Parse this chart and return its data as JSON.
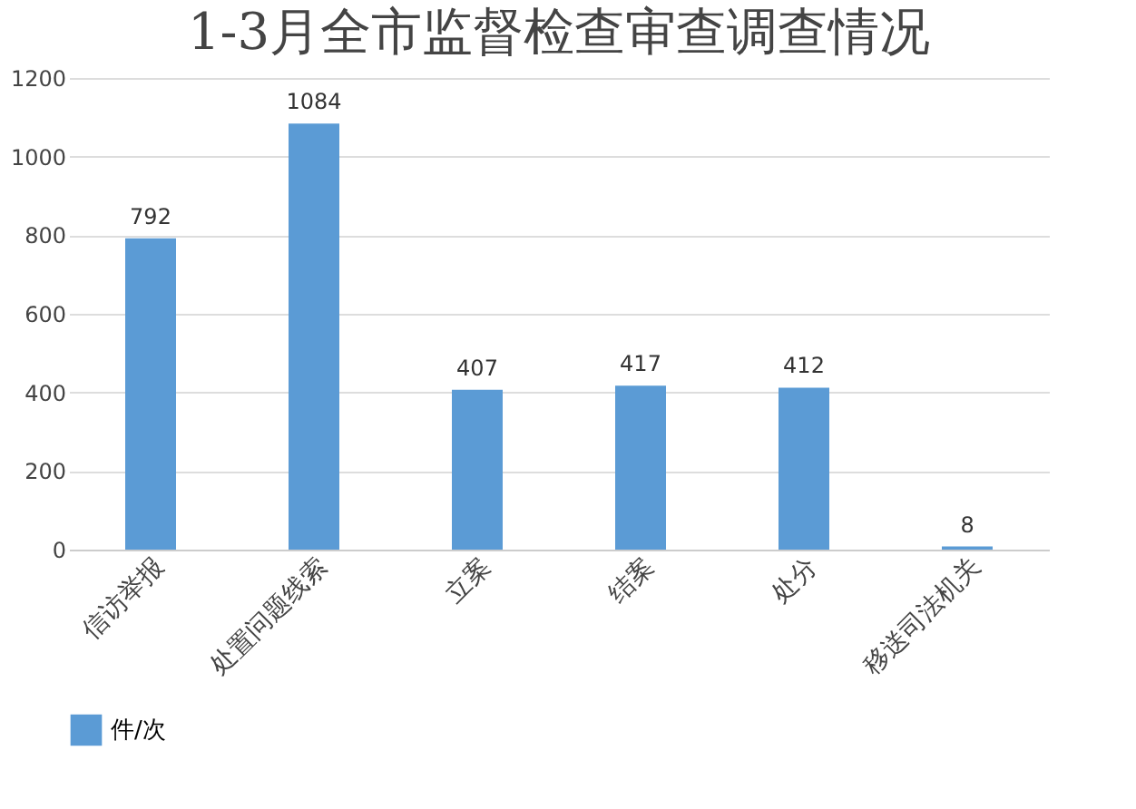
{
  "chart_data": {
    "type": "bar",
    "title": "1-3月全市监督检查审查调查情况",
    "categories": [
      "信访举报",
      "处置问题线索",
      "立案",
      "结案",
      "处分",
      "移送司法机关"
    ],
    "series": [
      {
        "name": "件/次",
        "color": "#5b9bd5",
        "values": [
          792,
          1084,
          407,
          417,
          412,
          8
        ]
      }
    ],
    "ylim": [
      0,
      1200
    ],
    "yticks": [
      0,
      200,
      400,
      600,
      800,
      1000,
      1200
    ],
    "grid": "y",
    "legend": "bottom",
    "data_labels": true
  }
}
